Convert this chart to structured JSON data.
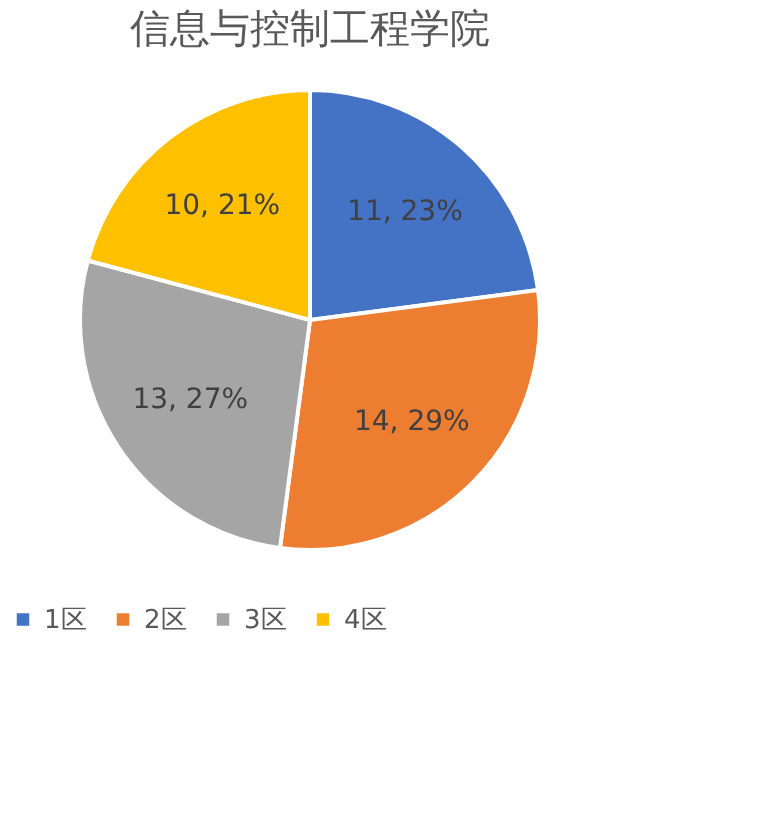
{
  "chart_data": {
    "type": "pie",
    "title": "信息与控制工程学院",
    "categories": [
      "1区",
      "2区",
      "3区",
      "4区"
    ],
    "values": [
      11,
      14,
      13,
      10
    ],
    "colors": [
      "#4472c4",
      "#ed7d31",
      "#a5a5a5",
      "#ffc000"
    ],
    "value_labels": [
      "11, 23%",
      "14, 29%",
      "13, 27%",
      "10, 21%"
    ],
    "legend": "bottom"
  }
}
